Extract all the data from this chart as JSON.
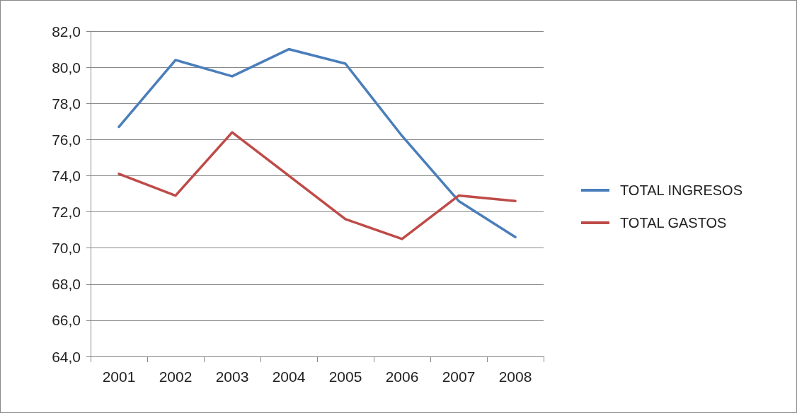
{
  "chart_data": {
    "type": "line",
    "categories": [
      "2001",
      "2002",
      "2003",
      "2004",
      "2005",
      "2006",
      "2007",
      "2008"
    ],
    "series": [
      {
        "name": "TOTAL INGRESOS",
        "color": "#4a7ebb",
        "values": [
          76.7,
          80.4,
          79.5,
          81.0,
          80.2,
          76.2,
          72.6,
          70.6
        ]
      },
      {
        "name": "TOTAL GASTOS",
        "color": "#be4b48",
        "values": [
          74.1,
          72.9,
          76.4,
          74.0,
          71.6,
          70.5,
          72.9,
          72.6
        ]
      }
    ],
    "ylim": [
      64,
      82
    ],
    "yticks": [
      {
        "value": 64,
        "label": "64,0"
      },
      {
        "value": 66,
        "label": "66,0"
      },
      {
        "value": 68,
        "label": "68,0"
      },
      {
        "value": 70,
        "label": "70,0"
      },
      {
        "value": 72,
        "label": "72,0"
      },
      {
        "value": 74,
        "label": "74,0"
      },
      {
        "value": 76,
        "label": "76,0"
      },
      {
        "value": 78,
        "label": "78,0"
      },
      {
        "value": 80,
        "label": "80,0"
      },
      {
        "value": 82,
        "label": "82,0"
      }
    ],
    "grid": "y",
    "legend": "right",
    "marker": "none",
    "line_style": "solid"
  }
}
